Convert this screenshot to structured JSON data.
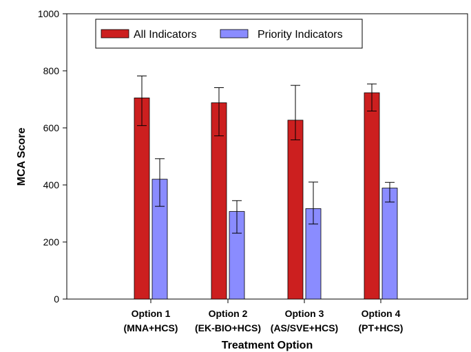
{
  "chart_data": {
    "type": "bar",
    "xlabel": "Treatment Option",
    "ylabel": "MCA Score",
    "ylim": [
      0,
      1000
    ],
    "yticks": [
      0,
      200,
      400,
      600,
      800,
      1000
    ],
    "categories": [
      {
        "line1": "Option 1",
        "line2": "(MNA+HCS)"
      },
      {
        "line1": "Option 2",
        "line2": "(EK-BIO+HCS)"
      },
      {
        "line1": "Option 3",
        "line2": "(AS/SVE+HCS)"
      },
      {
        "line1": "Option 4",
        "line2": "(PT+HCS)"
      }
    ],
    "series": [
      {
        "name": "All Indicators",
        "color": "#cc1f1f",
        "values": [
          705,
          688,
          627,
          723
        ],
        "err_low": [
          608,
          572,
          558,
          659
        ],
        "err_high": [
          782,
          741,
          749,
          754
        ]
      },
      {
        "name": "Priority Indicators",
        "color": "#8a8cff",
        "values": [
          420,
          307,
          317,
          389
        ],
        "err_low": [
          325,
          231,
          263,
          340
        ],
        "err_high": [
          492,
          345,
          410,
          409
        ]
      }
    ],
    "legend_position": "top-left",
    "grid": false
  }
}
